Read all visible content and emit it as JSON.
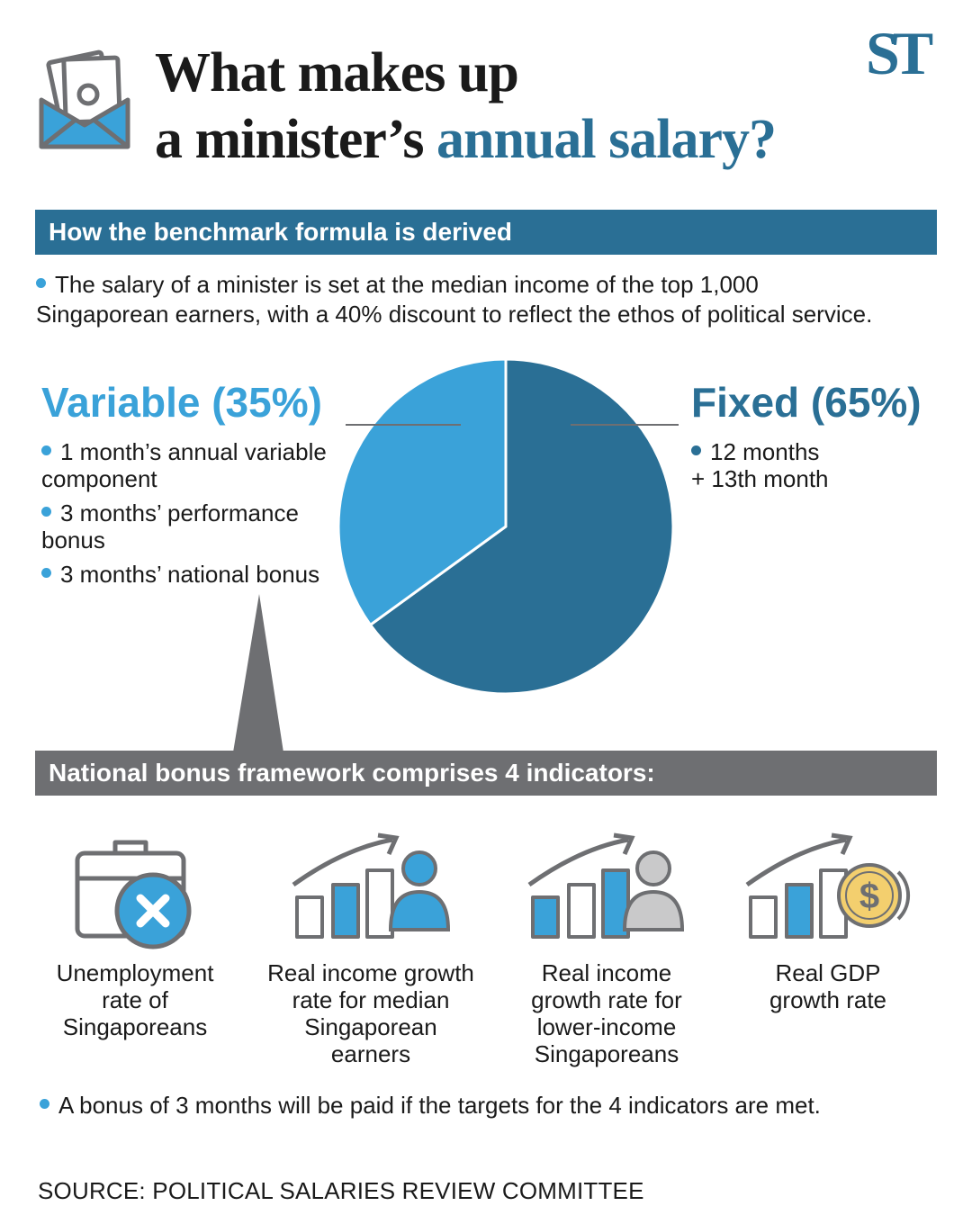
{
  "header": {
    "title_line1": "What makes up",
    "title_line2_prefix": "a minister’s",
    "title_line2_accent": "annual salary?",
    "logo": "ST",
    "icon": "salary-envelope-icon"
  },
  "section1": {
    "heading": "How the benchmark formula is derived",
    "intro_line1": "The salary of a minister is set at the median income of the top 1,000",
    "intro_line2": "Singaporean earners, with a 40% discount to reflect the ethos of political service."
  },
  "chart_data": {
    "type": "pie",
    "slices": [
      {
        "label": "Variable (35%)",
        "value": 35,
        "color": "#3aa2d9"
      },
      {
        "label": "Fixed (65%)",
        "value": 65,
        "color": "#2a6f95"
      }
    ]
  },
  "variable": {
    "title": "Variable (35%)",
    "items": [
      {
        "line1": "1 month’s annual variable",
        "line2": "component"
      },
      {
        "line1": "3 months’ performance",
        "line2": "bonus"
      },
      {
        "line1": "3 months’ national bonus",
        "line2": ""
      }
    ]
  },
  "fixed": {
    "title": "Fixed (65%)",
    "line1": "12 months",
    "line2": "+ 13th month"
  },
  "section2": {
    "heading": "National bonus framework comprises 4 indicators:",
    "indicators": [
      {
        "icon": "briefcase-cross-icon",
        "lines": [
          "Unemployment",
          "rate of",
          "Singaporeans"
        ]
      },
      {
        "icon": "growth-chart-person-blue-icon",
        "lines": [
          "Real income growth",
          "rate for median",
          "Singaporean",
          "earners"
        ]
      },
      {
        "icon": "growth-chart-person-grey-icon",
        "lines": [
          "Real income",
          "growth rate for",
          "lower-income",
          "Singaporeans"
        ]
      },
      {
        "icon": "growth-chart-dollar-icon",
        "lines": [
          "Real GDP",
          "growth rate"
        ]
      }
    ],
    "note": "A bonus of 3 months will be paid if the targets for the 4 indicators are met."
  },
  "source": "SOURCE: POLITICAL SALARIES REVIEW COMMITTEE",
  "colors": {
    "accent": "#2a6f95",
    "light": "#3aa2d9",
    "grey": "#6e6f72"
  }
}
